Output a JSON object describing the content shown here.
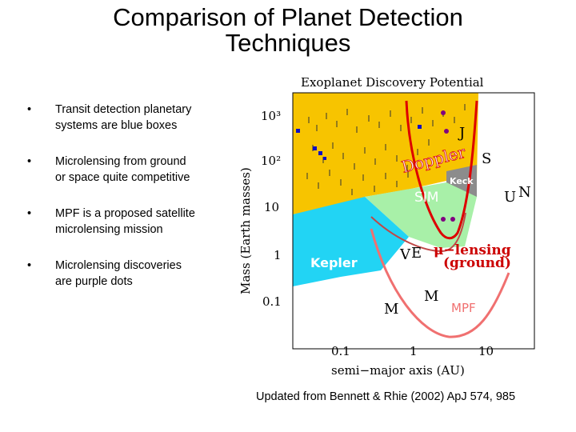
{
  "slide": {
    "title_line1": "Comparison of Planet Detection",
    "title_line2": "Techniques",
    "bullets": [
      "Transit detection planetary systems are blue boxes",
      "Microlensing from ground or space quite competitive",
      "MPF is a proposed satellite microlensing mission",
      "Microlensing discoveries are purple dots"
    ],
    "bullet_marker": "•",
    "credit": "Updated from  Bennett & Rhie (2002) ApJ 574, 985"
  },
  "figure": {
    "title": "Exoplanet Discovery Potential",
    "ylabel": "Mass (Earth masses)",
    "xlabel": "semi−major axis (AU)",
    "y_ticks": [
      "10³",
      "10²",
      "10",
      "1",
      "0.1"
    ],
    "x_ticks": [
      "0.1",
      "1",
      "10"
    ],
    "region_labels": {
      "doppler": "Doppler",
      "keck": "Keck",
      "sim": "SIM",
      "kepler": "Kepler",
      "microlensing": "μ−lensing",
      "ground": "(ground)",
      "mpf": "MPF"
    },
    "planet_labels": {
      "jupiter": "J",
      "saturn": "S",
      "uranus": "U",
      "neptune": "N",
      "venus": "V",
      "earth": "E",
      "mars_left": "M",
      "mars_right": "M"
    },
    "colors": {
      "doppler_region": "#f7c400",
      "sim_region": "#a8f0a8",
      "kepler_region": "#22d4f4",
      "keck_region": "#8c8c8c",
      "doppler_curve": "#dd0000",
      "mpf_curve": "#f07070",
      "microlensing_text": "#cc0000",
      "transit_boxes": "#1010c0",
      "microlensing_dots": "#800080"
    }
  }
}
